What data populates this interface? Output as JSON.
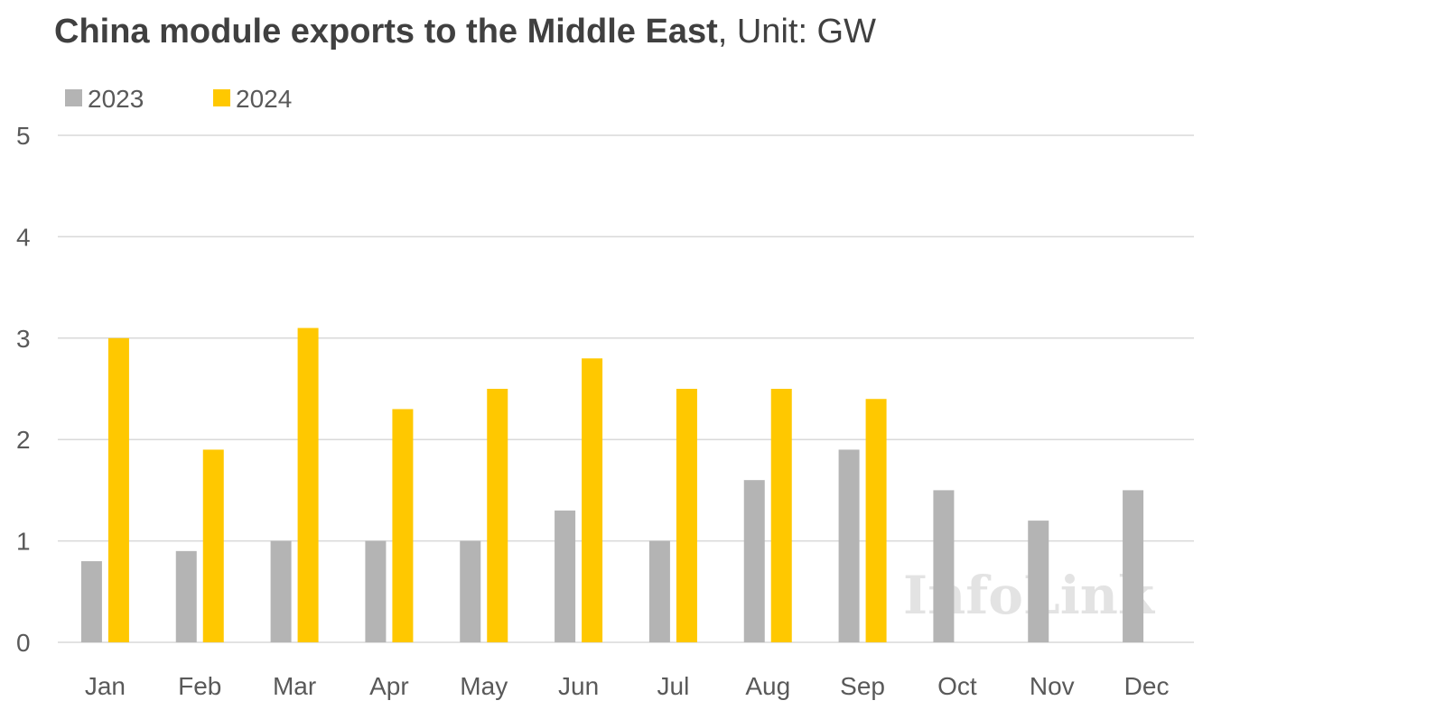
{
  "chart_data": {
    "type": "bar",
    "title": "China module exports to the Middle East",
    "unit_label": ", Unit: GW",
    "categories": [
      "Jan",
      "Feb",
      "Mar",
      "Apr",
      "May",
      "Jun",
      "Jul",
      "Aug",
      "Sep",
      "Oct",
      "Nov",
      "Dec"
    ],
    "series": [
      {
        "name": "2023",
        "color": "#b4b4b4",
        "values": [
          0.8,
          0.9,
          1.0,
          1.0,
          1.0,
          1.3,
          1.0,
          1.6,
          1.9,
          1.5,
          1.2,
          1.5
        ]
      },
      {
        "name": "2024",
        "color": "#ffc800",
        "values": [
          3.0,
          1.9,
          3.1,
          2.3,
          2.5,
          2.8,
          2.5,
          2.5,
          2.4,
          null,
          null,
          null
        ]
      }
    ],
    "ylim": [
      0,
      5
    ],
    "yticks": [
      0,
      1,
      2,
      3,
      4,
      5
    ],
    "grid": true,
    "legend_position": "top-left",
    "watermark": "InfoLink"
  }
}
